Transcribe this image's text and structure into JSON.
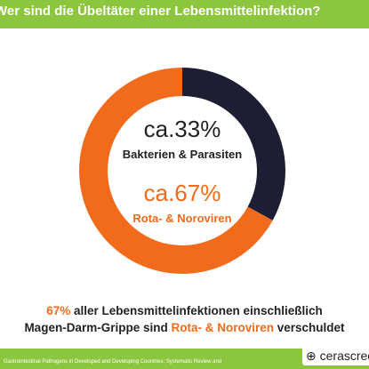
{
  "chart_data": {
    "type": "pie",
    "donut": true,
    "title": "Wer sind die Übeltäter einer Lebensmittelinfektion?",
    "categories": [
      "Bakterien & Parasiten",
      "Rota- & Noroviren"
    ],
    "values": [
      33,
      67
    ],
    "value_labels": [
      "ca.33%",
      "ca.67%"
    ],
    "colors": [
      "#1d1d33",
      "#f26a1b"
    ]
  },
  "caption": {
    "lines": [
      [
        "67%",
        "aller Lebensmittelinfektionen einschließlich"
      ],
      [
        "Magen-Darm-Grippe sind",
        "Rota- & Noroviren",
        "verschuldet"
      ]
    ]
  },
  "source": "Gastrointestinal Pathogens in Developed and Developing Countries: Systematic Review and",
  "logo": "cerascreen"
}
